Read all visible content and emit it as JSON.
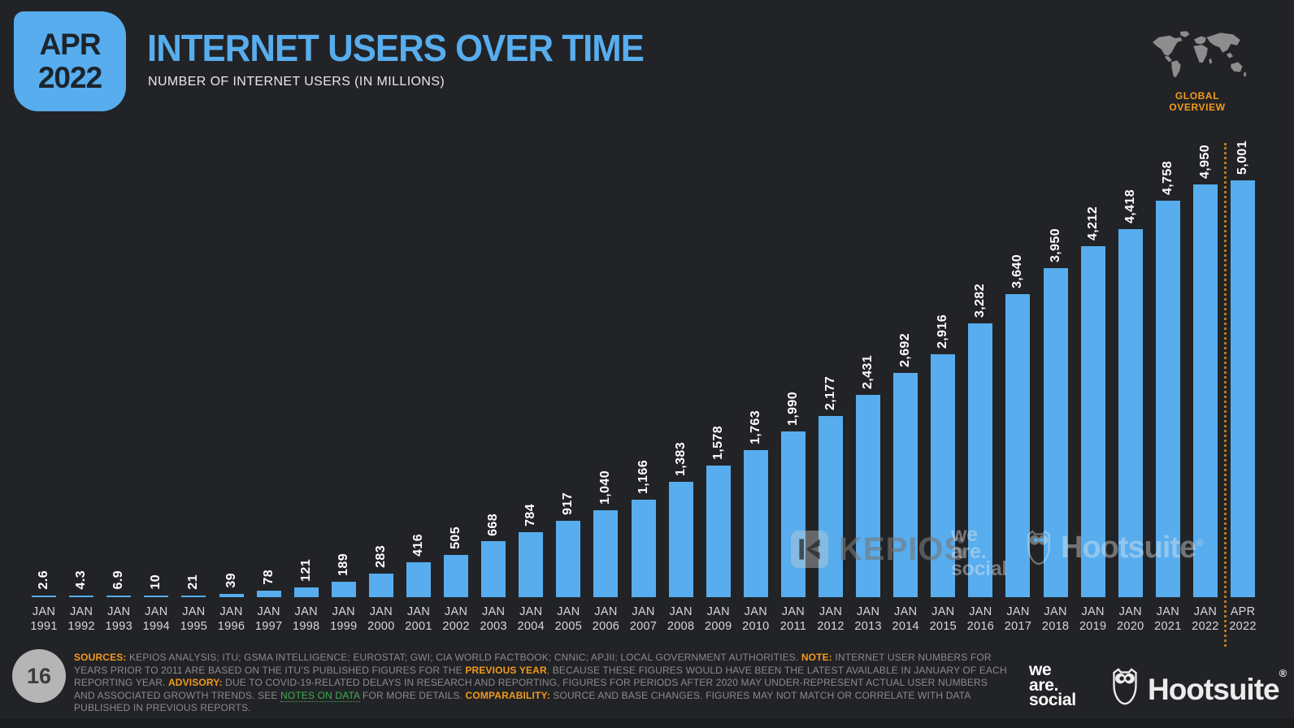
{
  "header": {
    "badge_line1": "APR",
    "badge_line2": "2022",
    "title": "INTERNET USERS OVER TIME",
    "subtitle": "NUMBER OF INTERNET USERS (IN MILLIONS)",
    "overview_label": "GLOBAL OVERVIEW"
  },
  "chart_data": {
    "type": "bar",
    "title": "INTERNET USERS OVER TIME",
    "ylabel": "NUMBER OF INTERNET USERS (IN MILLIONS)",
    "unit": "millions of internet users",
    "ylim": [
      0,
      5001
    ],
    "grid": false,
    "legend": "none",
    "bar_color": "#57adee",
    "categories": [
      "JAN 1991",
      "JAN 1992",
      "JAN 1993",
      "JAN 1994",
      "JAN 1995",
      "JAN 1996",
      "JAN 1997",
      "JAN 1998",
      "JAN 1999",
      "JAN 2000",
      "JAN 2001",
      "JAN 2002",
      "JAN 2003",
      "JAN 2004",
      "JAN 2005",
      "JAN 2006",
      "JAN 2007",
      "JAN 2008",
      "JAN 2009",
      "JAN 2010",
      "JAN 2011",
      "JAN 2012",
      "JAN 2013",
      "JAN 2014",
      "JAN 2015",
      "JAN 2016",
      "JAN 2017",
      "JAN 2018",
      "JAN 2019",
      "JAN 2020",
      "JAN 2021",
      "JAN 2022",
      "APR 2022"
    ],
    "values": [
      2.6,
      4.3,
      6.9,
      10,
      21,
      39,
      78,
      121,
      189,
      283,
      416,
      505,
      668,
      784,
      917,
      1040,
      1166,
      1383,
      1578,
      1763,
      1990,
      2177,
      2431,
      2692,
      2916,
      3282,
      3640,
      3950,
      4212,
      4418,
      4758,
      4950,
      5001
    ],
    "value_labels": [
      "2.6",
      "4.3",
      "6.9",
      "10",
      "21",
      "39",
      "78",
      "121",
      "189",
      "283",
      "416",
      "505",
      "668",
      "784",
      "917",
      "1,040",
      "1,166",
      "1,383",
      "1,578",
      "1,763",
      "1,990",
      "2,177",
      "2,431",
      "2,692",
      "2,916",
      "3,282",
      "3,640",
      "3,950",
      "4,212",
      "4,418",
      "4,758",
      "4,950",
      "5,001"
    ],
    "separator_before_category": "APR 2022"
  },
  "watermarks": {
    "kepios": "KEPIOS",
    "we_are_social": [
      "we",
      "are.",
      "social"
    ],
    "hootsuite": "Hootsuite",
    "hootsuite_registered": "®"
  },
  "footer": {
    "page_number": "16",
    "segments": [
      {
        "t": "SOURCES:",
        "s": "label"
      },
      {
        "t": " KEPIOS ANALYSIS; ITU; GSMA INTELLIGENCE; EUROSTAT; GWI; CIA WORLD FACTBOOK; CNNIC; APJII; LOCAL GOVERNMENT AUTHORITIES. ",
        "s": "plain"
      },
      {
        "t": "NOTE:",
        "s": "label"
      },
      {
        "t": " INTERNET USER NUMBERS FOR YEARS PRIOR TO 2011 ARE BASED ON THE ITU’S PUBLISHED FIGURES FOR THE ",
        "s": "plain"
      },
      {
        "t": "PREVIOUS YEAR",
        "s": "orange"
      },
      {
        "t": ", BECAUSE THESE FIGURES WOULD HAVE BEEN THE LATEST AVAILABLE IN JANUARY OF EACH REPORTING YEAR. ",
        "s": "plain"
      },
      {
        "t": "ADVISORY:",
        "s": "label"
      },
      {
        "t": " DUE TO COVID-19-RELATED DELAYS IN RESEARCH AND REPORTING, FIGURES FOR PERIODS AFTER 2020 MAY UNDER-REPRESENT ACTUAL USER NUMBERS AND ASSOCIATED GROWTH TRENDS. SEE ",
        "s": "plain"
      },
      {
        "t": "NOTES ON DATA",
        "s": "green"
      },
      {
        "t": " FOR MORE DETAILS. ",
        "s": "plain"
      },
      {
        "t": "COMPARABILITY:",
        "s": "label"
      },
      {
        "t": " SOURCE AND BASE CHANGES. FIGURES MAY NOT MATCH OR CORRELATE WITH DATA PUBLISHED IN PREVIOUS REPORTS.",
        "s": "plain"
      }
    ],
    "we_are_social_logo": [
      "we",
      "are.",
      "social"
    ],
    "hootsuite_logo": "Hootsuite",
    "hootsuite_registered": "®"
  },
  "colors": {
    "background": "#222326",
    "accent_blue": "#57adee",
    "accent_orange": "#f29a1d",
    "accent_green": "#3cb04e",
    "separator_orange": "#b47a1d",
    "footer_text_gray": "#8b8b8b",
    "x_label_gray": "#d8d8d8",
    "map_gray": "#8d8d8d"
  }
}
